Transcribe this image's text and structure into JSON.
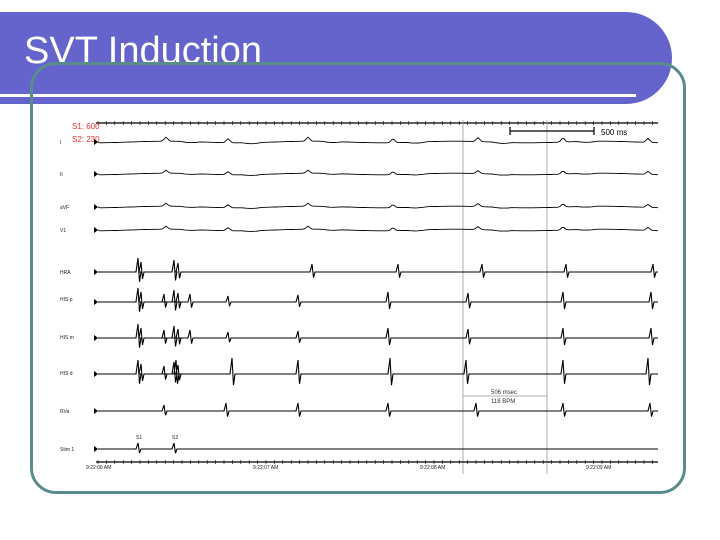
{
  "slide": {
    "title": "SVT Induction"
  },
  "stimulus": {
    "s1": "S1: 600",
    "s2": "S2: 230",
    "marker_s1": "S1",
    "marker_s2": "S2"
  },
  "scale_bar": {
    "label": "500 ms"
  },
  "measurement": {
    "interval": "506 msec",
    "rate": "118 BPM"
  },
  "leads": [
    "I",
    "II",
    "aVF",
    "V1",
    "HRA",
    "HIS p",
    "HIS m",
    "HIS d",
    "RVa",
    "Stim 1"
  ],
  "timestamps": [
    "9:22:06 AM",
    "9:22:07 AM",
    "9:22:08 AM",
    "9:22:09 AM"
  ],
  "colors": {
    "title_bar": "#6464cc",
    "frame_border": "#5a8c8c",
    "stim_text": "#e03030"
  }
}
